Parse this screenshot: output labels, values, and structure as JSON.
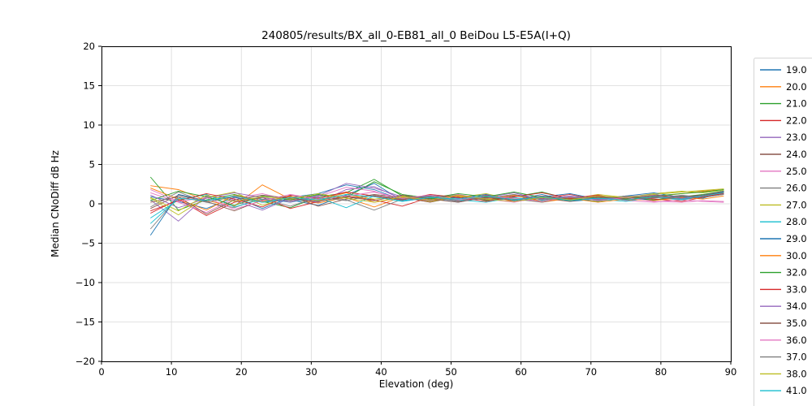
{
  "chart_data": {
    "type": "line",
    "title": "240805/results/BX_all_0-EB81_all_0 BeiDou L5-E5A(I+Q)",
    "xlabel": "Elevation (deg)",
    "ylabel": "Median CNoDiff dB Hz",
    "xlim": [
      0,
      90
    ],
    "ylim": [
      -20,
      20
    ],
    "xticks": [
      0,
      10,
      20,
      30,
      40,
      50,
      60,
      70,
      80,
      90
    ],
    "yticks": [
      -20,
      -15,
      -10,
      -5,
      0,
      5,
      10,
      15,
      20
    ],
    "grid": true,
    "grid_color": "#d9d9d9",
    "legend_position": "right",
    "x": [
      7,
      11,
      15,
      19,
      23,
      27,
      31,
      35,
      39,
      43,
      47,
      51,
      55,
      59,
      63,
      67,
      71,
      75,
      79,
      83,
      86,
      89
    ],
    "series": [
      {
        "name": "19.0",
        "color": "#1f77b4",
        "values": [
          0.9,
          0.3,
          -0.6,
          0.8,
          0.2,
          0.5,
          -0.2,
          1.1,
          2.6,
          0.4,
          0.7,
          0.2,
          0.9,
          0.5,
          1.2,
          0.3,
          0.6,
          0.8,
          0.4,
          1.0,
          0.7,
          1.5
        ]
      },
      {
        "name": "20.0",
        "color": "#ff7f0e",
        "values": [
          2.3,
          1.8,
          0.4,
          -0.3,
          2.4,
          0.6,
          0.1,
          0.8,
          -0.4,
          0.9,
          0.3,
          1.1,
          0.5,
          0.8,
          0.2,
          0.7,
          1.0,
          0.4,
          0.9,
          1.3,
          1.6,
          1.8
        ]
      },
      {
        "name": "21.0",
        "color": "#2ca02c",
        "values": [
          3.4,
          -0.8,
          0.5,
          1.2,
          0.3,
          -0.5,
          0.9,
          1.4,
          3.1,
          1.0,
          0.6,
          1.2,
          0.4,
          0.9,
          1.5,
          0.6,
          0.3,
          0.8,
          0.5,
          0.9,
          1.2,
          1.6
        ]
      },
      {
        "name": "22.0",
        "color": "#d62728",
        "values": [
          -1.2,
          0.6,
          -1.5,
          0.2,
          0.8,
          -0.6,
          0.3,
          1.0,
          0.5,
          -0.3,
          0.8,
          0.4,
          1.1,
          0.3,
          0.7,
          1.2,
          0.5,
          0.9,
          0.6,
          0.3,
          0.8,
          1.4
        ]
      },
      {
        "name": "23.0",
        "color": "#9467bd",
        "values": [
          0.5,
          -2.2,
          1.0,
          0.4,
          -0.8,
          0.7,
          0.2,
          1.8,
          2.2,
          0.6,
          1.0,
          0.3,
          0.8,
          1.4,
          0.5,
          0.9,
          0.4,
          0.7,
          1.1,
          0.6,
          0.9,
          1.3
        ]
      },
      {
        "name": "24.0",
        "color": "#8c564b",
        "values": [
          -0.6,
          1.1,
          0.3,
          -0.9,
          0.5,
          1.0,
          -0.3,
          0.6,
          1.2,
          0.8,
          0.2,
          0.9,
          0.5,
          1.0,
          0.7,
          0.3,
          0.8,
          0.5,
          0.9,
          0.7,
          1.0,
          1.5
        ]
      },
      {
        "name": "25.0",
        "color": "#e377c2",
        "values": [
          1.4,
          0.2,
          -1.1,
          0.7,
          1.3,
          0.4,
          0.9,
          2.1,
          1.6,
          0.3,
          0.8,
          1.2,
          0.6,
          0.2,
          0.9,
          0.5,
          1.1,
          0.4,
          0.2,
          0.5,
          0.3,
          0.2
        ]
      },
      {
        "name": "26.0",
        "color": "#7f7f7f",
        "values": [
          -3.2,
          0.9,
          0.2,
          -0.5,
          0.8,
          0.3,
          1.1,
          0.5,
          -0.8,
          0.6,
          1.0,
          0.4,
          0.9,
          0.6,
          0.2,
          0.8,
          0.5,
          1.0,
          0.7,
          1.1,
          0.8,
          1.2
        ]
      },
      {
        "name": "27.0",
        "color": "#bcbd22",
        "values": [
          0.7,
          -1.4,
          0.8,
          1.5,
          -0.2,
          0.9,
          0.4,
          1.2,
          0.6,
          1.0,
          0.3,
          0.8,
          1.3,
          0.5,
          0.9,
          0.6,
          1.2,
          0.8,
          1.3,
          1.6,
          1.4,
          1.7
        ]
      },
      {
        "name": "28.0",
        "color": "#17becf",
        "values": [
          -1.8,
          0.5,
          1.2,
          -0.4,
          0.6,
          0.2,
          0.8,
          -0.5,
          1.0,
          0.4,
          0.9,
          0.5,
          0.2,
          0.8,
          0.4,
          1.0,
          0.6,
          0.3,
          0.8,
          0.5,
          0.9,
          1.2
        ]
      },
      {
        "name": "29.0",
        "color": "#1f77b4",
        "values": [
          -4.0,
          1.2,
          0.4,
          0.9,
          -0.6,
          0.8,
          1.3,
          2.4,
          1.8,
          0.5,
          1.1,
          0.7,
          1.2,
          0.4,
          0.9,
          1.3,
          0.6,
          1.0,
          1.4,
          0.8,
          1.1,
          1.6
        ]
      },
      {
        "name": "30.0",
        "color": "#ff7f0e",
        "values": [
          2.0,
          0.6,
          -0.8,
          1.1,
          0.3,
          0.9,
          0.5,
          1.4,
          0.2,
          0.8,
          0.4,
          1.0,
          0.6,
          1.1,
          0.3,
          0.7,
          0.2,
          0.6,
          0.4,
          0.8,
          0.6,
          1.0
        ]
      },
      {
        "name": "32.0",
        "color": "#2ca02c",
        "values": [
          0.4,
          1.6,
          0.9,
          -0.2,
          1.0,
          0.5,
          1.2,
          0.8,
          2.8,
          1.2,
          0.7,
          1.3,
          0.9,
          1.5,
          0.8,
          0.4,
          0.9,
          0.6,
          1.0,
          1.3,
          1.5,
          1.8
        ]
      },
      {
        "name": "33.0",
        "color": "#d62728",
        "values": [
          -0.9,
          0.4,
          1.3,
          0.6,
          -0.4,
          1.1,
          0.7,
          1.5,
          1.0,
          0.5,
          1.2,
          0.8,
          0.3,
          0.9,
          1.4,
          0.7,
          1.1,
          0.5,
          0.8,
          0.6,
          0.9,
          1.3
        ]
      },
      {
        "name": "34.0",
        "color": "#9467bd",
        "values": [
          1.1,
          -0.5,
          0.7,
          1.4,
          0.8,
          0.2,
          1.0,
          2.6,
          2.0,
          0.9,
          0.4,
          1.1,
          0.7,
          1.2,
          0.6,
          1.0,
          0.5,
          0.9,
          1.2,
          0.7,
          1.0,
          1.4
        ]
      },
      {
        "name": "35.0",
        "color": "#8c564b",
        "values": [
          0.2,
          0.9,
          -1.3,
          0.5,
          1.1,
          0.7,
          0.3,
          0.9,
          0.4,
          1.1,
          0.6,
          0.2,
          0.8,
          0.5,
          1.0,
          0.6,
          0.9,
          0.7,
          1.0,
          0.9,
          1.1,
          1.5
        ]
      },
      {
        "name": "36.0",
        "color": "#e377c2",
        "values": [
          1.8,
          0.3,
          0.8,
          -0.7,
          0.4,
          1.2,
          0.6,
          1.0,
          1.5,
          0.7,
          1.1,
          0.5,
          1.0,
          0.7,
          0.3,
          0.9,
          0.4,
          0.8,
          0.3,
          0.2,
          0.4,
          0.3
        ]
      },
      {
        "name": "37.0",
        "color": "#7f7f7f",
        "values": [
          -0.4,
          1.5,
          0.2,
          0.9,
          0.6,
          -0.3,
          0.8,
          0.4,
          1.1,
          0.6,
          0.9,
          0.3,
          0.7,
          1.2,
          0.5,
          0.8,
          0.6,
          1.0,
          0.7,
          1.0,
          0.8,
          1.2
        ]
      },
      {
        "name": "38.0",
        "color": "#bcbd22",
        "values": [
          0.8,
          -0.9,
          1.1,
          0.3,
          0.9,
          0.6,
          1.3,
          0.7,
          0.2,
          0.9,
          0.5,
          1.1,
          0.6,
          0.3,
          0.8,
          0.5,
          1.0,
          0.8,
          1.2,
          1.5,
          1.7,
          1.9
        ]
      },
      {
        "name": "41.0",
        "color": "#17becf",
        "values": [
          -2.5,
          0.7,
          0.4,
          1.0,
          0.2,
          0.8,
          0.5,
          1.2,
          0.9,
          0.3,
          0.8,
          0.6,
          1.0,
          0.5,
          0.9,
          0.4,
          0.7,
          0.5,
          0.9,
          0.6,
          1.0,
          1.4
        ]
      }
    ]
  }
}
